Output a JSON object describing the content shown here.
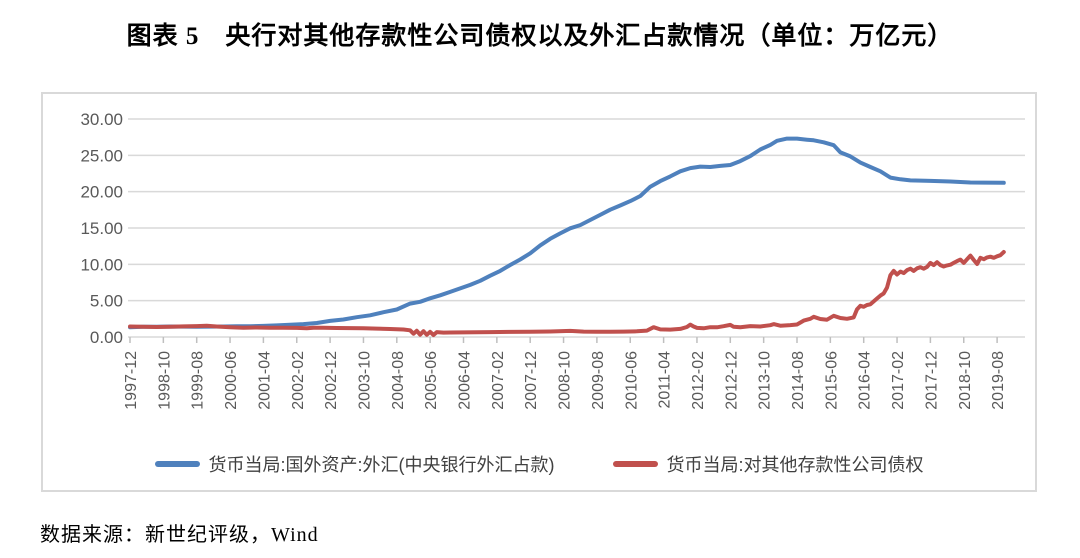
{
  "title": "图表 5　央行对其他存款性公司债权以及外汇占款情况（单位：万亿元）",
  "source": "数据来源：新世纪评级，Wind",
  "colors": {
    "series_blue": "#4f81bd",
    "series_red": "#c0504d",
    "gridline": "#d9d9d9",
    "axis_text": "#595959",
    "chart_border": "#d9d9d9"
  },
  "chart_data": {
    "type": "line",
    "title": "",
    "unit": "万亿元",
    "xlabel": "",
    "ylabel": "",
    "ylim": [
      0,
      30
    ],
    "grid": true,
    "legend_position": "bottom",
    "y_ticks": [
      30,
      25,
      20,
      15,
      10,
      5,
      0
    ],
    "y_tick_labels": [
      "30.00",
      "25.00",
      "20.00",
      "15.00",
      "10.00",
      "5.00",
      "0.00"
    ],
    "x_start": "1997-12",
    "x_end": "2019-10",
    "x_tick_labels": [
      "1997-12",
      "1998-10",
      "1999-08",
      "2000-06",
      "2001-04",
      "2002-02",
      "2002-12",
      "2003-10",
      "2004-08",
      "2005-06",
      "2006-04",
      "2007-02",
      "2007-12",
      "2008-10",
      "2009-08",
      "2010-06",
      "2011-04",
      "2012-02",
      "2012-12",
      "2013-10",
      "2014-08",
      "2015-06",
      "2016-04",
      "2017-02",
      "2017-12",
      "2018-10",
      "2019-08"
    ],
    "series": [
      {
        "name": "货币当局:国外资产:外汇(中央银行外汇占款)",
        "color": "#4f81bd",
        "points": [
          [
            "1997-12",
            1.35
          ],
          [
            "1998-04",
            1.4
          ],
          [
            "1998-08",
            1.42
          ],
          [
            "1998-12",
            1.45
          ],
          [
            "1999-04",
            1.43
          ],
          [
            "1999-08",
            1.41
          ],
          [
            "1999-12",
            1.43
          ],
          [
            "2000-04",
            1.45
          ],
          [
            "2000-08",
            1.47
          ],
          [
            "2000-12",
            1.49
          ],
          [
            "2001-04",
            1.53
          ],
          [
            "2001-08",
            1.6
          ],
          [
            "2001-12",
            1.69
          ],
          [
            "2002-04",
            1.78
          ],
          [
            "2002-08",
            1.93
          ],
          [
            "2002-12",
            2.21
          ],
          [
            "2003-04",
            2.41
          ],
          [
            "2003-08",
            2.72
          ],
          [
            "2003-12",
            2.98
          ],
          [
            "2004-04",
            3.41
          ],
          [
            "2004-08",
            3.78
          ],
          [
            "2004-12",
            4.59
          ],
          [
            "2005-03",
            4.85
          ],
          [
            "2005-06",
            5.32
          ],
          [
            "2005-09",
            5.74
          ],
          [
            "2005-12",
            6.21
          ],
          [
            "2006-03",
            6.69
          ],
          [
            "2006-06",
            7.17
          ],
          [
            "2006-09",
            7.73
          ],
          [
            "2006-12",
            8.44
          ],
          [
            "2007-03",
            9.1
          ],
          [
            "2007-06",
            9.91
          ],
          [
            "2007-09",
            10.66
          ],
          [
            "2007-12",
            11.52
          ],
          [
            "2008-03",
            12.6
          ],
          [
            "2008-06",
            13.52
          ],
          [
            "2008-09",
            14.25
          ],
          [
            "2008-12",
            14.96
          ],
          [
            "2009-03",
            15.4
          ],
          [
            "2009-06",
            16.1
          ],
          [
            "2009-09",
            16.8
          ],
          [
            "2009-12",
            17.52
          ],
          [
            "2010-03",
            18.1
          ],
          [
            "2010-06",
            18.7
          ],
          [
            "2010-09",
            19.4
          ],
          [
            "2010-12",
            20.68
          ],
          [
            "2011-03",
            21.45
          ],
          [
            "2011-06",
            22.1
          ],
          [
            "2011-09",
            22.8
          ],
          [
            "2011-12",
            23.24
          ],
          [
            "2012-03",
            23.45
          ],
          [
            "2012-06",
            23.4
          ],
          [
            "2012-09",
            23.55
          ],
          [
            "2012-12",
            23.67
          ],
          [
            "2013-03",
            24.2
          ],
          [
            "2013-06",
            24.9
          ],
          [
            "2013-09",
            25.8
          ],
          [
            "2013-12",
            26.43
          ],
          [
            "2014-02",
            27.0
          ],
          [
            "2014-05",
            27.3
          ],
          [
            "2014-08",
            27.3
          ],
          [
            "2014-11",
            27.15
          ],
          [
            "2015-01",
            27.07
          ],
          [
            "2015-04",
            26.8
          ],
          [
            "2015-07",
            26.4
          ],
          [
            "2015-09",
            25.4
          ],
          [
            "2015-12",
            24.85
          ],
          [
            "2016-03",
            24.0
          ],
          [
            "2016-06",
            23.4
          ],
          [
            "2016-09",
            22.8
          ],
          [
            "2016-12",
            21.94
          ],
          [
            "2017-03",
            21.7
          ],
          [
            "2017-06",
            21.55
          ],
          [
            "2017-12",
            21.48
          ],
          [
            "2018-06",
            21.4
          ],
          [
            "2018-12",
            21.26
          ],
          [
            "2019-04",
            21.25
          ],
          [
            "2019-10",
            21.22
          ]
        ]
      },
      {
        "name": "货币当局:对其他存款性公司债权",
        "color": "#c0504d",
        "points": [
          [
            "1997-12",
            1.44
          ],
          [
            "1998-04",
            1.42
          ],
          [
            "1998-08",
            1.37
          ],
          [
            "1998-12",
            1.42
          ],
          [
            "1999-04",
            1.46
          ],
          [
            "1999-08",
            1.5
          ],
          [
            "1999-11",
            1.55
          ],
          [
            "2000-02",
            1.45
          ],
          [
            "2000-06",
            1.35
          ],
          [
            "2000-10",
            1.28
          ],
          [
            "2001-02",
            1.31
          ],
          [
            "2001-06",
            1.28
          ],
          [
            "2001-10",
            1.26
          ],
          [
            "2002-02",
            1.25
          ],
          [
            "2002-05",
            1.2
          ],
          [
            "2002-07",
            1.28
          ],
          [
            "2002-10",
            1.26
          ],
          [
            "2003-02",
            1.24
          ],
          [
            "2003-06",
            1.22
          ],
          [
            "2003-10",
            1.2
          ],
          [
            "2004-02",
            1.16
          ],
          [
            "2004-06",
            1.1
          ],
          [
            "2004-10",
            1.03
          ],
          [
            "2004-12",
            0.92
          ],
          [
            "2005-01",
            0.45
          ],
          [
            "2005-02",
            0.85
          ],
          [
            "2005-03",
            0.32
          ],
          [
            "2005-04",
            0.8
          ],
          [
            "2005-05",
            0.3
          ],
          [
            "2005-06",
            0.72
          ],
          [
            "2005-07",
            0.28
          ],
          [
            "2005-08",
            0.68
          ],
          [
            "2005-10",
            0.6
          ],
          [
            "2005-12",
            0.62
          ],
          [
            "2006-04",
            0.63
          ],
          [
            "2006-08",
            0.65
          ],
          [
            "2006-12",
            0.68
          ],
          [
            "2007-06",
            0.7
          ],
          [
            "2007-12",
            0.73
          ],
          [
            "2008-06",
            0.75
          ],
          [
            "2008-12",
            0.84
          ],
          [
            "2009-04",
            0.74
          ],
          [
            "2009-08",
            0.71
          ],
          [
            "2009-12",
            0.72
          ],
          [
            "2010-04",
            0.74
          ],
          [
            "2010-08",
            0.78
          ],
          [
            "2010-11",
            0.88
          ],
          [
            "2011-01",
            1.35
          ],
          [
            "2011-03",
            1.05
          ],
          [
            "2011-06",
            1.02
          ],
          [
            "2011-09",
            1.12
          ],
          [
            "2011-11",
            1.38
          ],
          [
            "2011-12",
            1.7
          ],
          [
            "2012-01",
            1.45
          ],
          [
            "2012-02",
            1.25
          ],
          [
            "2012-04",
            1.2
          ],
          [
            "2012-06",
            1.35
          ],
          [
            "2012-08",
            1.34
          ],
          [
            "2012-10",
            1.48
          ],
          [
            "2012-12",
            1.67
          ],
          [
            "2013-01",
            1.42
          ],
          [
            "2013-03",
            1.35
          ],
          [
            "2013-06",
            1.5
          ],
          [
            "2013-09",
            1.44
          ],
          [
            "2013-12",
            1.62
          ],
          [
            "2014-01",
            1.78
          ],
          [
            "2014-03",
            1.56
          ],
          [
            "2014-06",
            1.64
          ],
          [
            "2014-08",
            1.72
          ],
          [
            "2014-10",
            2.25
          ],
          [
            "2014-12",
            2.5
          ],
          [
            "2015-01",
            2.78
          ],
          [
            "2015-03",
            2.48
          ],
          [
            "2015-05",
            2.38
          ],
          [
            "2015-07",
            2.92
          ],
          [
            "2015-09",
            2.62
          ],
          [
            "2015-11",
            2.5
          ],
          [
            "2016-01",
            2.7
          ],
          [
            "2016-02",
            3.8
          ],
          [
            "2016-03",
            4.3
          ],
          [
            "2016-04",
            4.15
          ],
          [
            "2016-05",
            4.4
          ],
          [
            "2016-06",
            4.5
          ],
          [
            "2016-07",
            4.9
          ],
          [
            "2016-08",
            5.3
          ],
          [
            "2016-09",
            5.7
          ],
          [
            "2016-10",
            6.0
          ],
          [
            "2016-11",
            6.8
          ],
          [
            "2016-12",
            8.5
          ],
          [
            "2017-01",
            9.1
          ],
          [
            "2017-02",
            8.6
          ],
          [
            "2017-03",
            9.0
          ],
          [
            "2017-04",
            8.8
          ],
          [
            "2017-05",
            9.2
          ],
          [
            "2017-06",
            9.4
          ],
          [
            "2017-07",
            9.1
          ],
          [
            "2017-08",
            9.45
          ],
          [
            "2017-09",
            9.6
          ],
          [
            "2017-10",
            9.4
          ],
          [
            "2017-11",
            9.65
          ],
          [
            "2017-12",
            10.2
          ],
          [
            "2018-01",
            9.9
          ],
          [
            "2018-02",
            10.3
          ],
          [
            "2018-03",
            9.9
          ],
          [
            "2018-04",
            9.7
          ],
          [
            "2018-05",
            9.85
          ],
          [
            "2018-06",
            9.95
          ],
          [
            "2018-07",
            10.2
          ],
          [
            "2018-08",
            10.45
          ],
          [
            "2018-09",
            10.65
          ],
          [
            "2018-10",
            10.2
          ],
          [
            "2018-11",
            10.7
          ],
          [
            "2018-12",
            11.2
          ],
          [
            "2019-01",
            10.6
          ],
          [
            "2019-02",
            10.05
          ],
          [
            "2019-03",
            10.9
          ],
          [
            "2019-04",
            10.7
          ],
          [
            "2019-05",
            10.95
          ],
          [
            "2019-06",
            11.05
          ],
          [
            "2019-07",
            10.9
          ],
          [
            "2019-08",
            11.1
          ],
          [
            "2019-09",
            11.25
          ],
          [
            "2019-10",
            11.7
          ]
        ]
      }
    ]
  }
}
